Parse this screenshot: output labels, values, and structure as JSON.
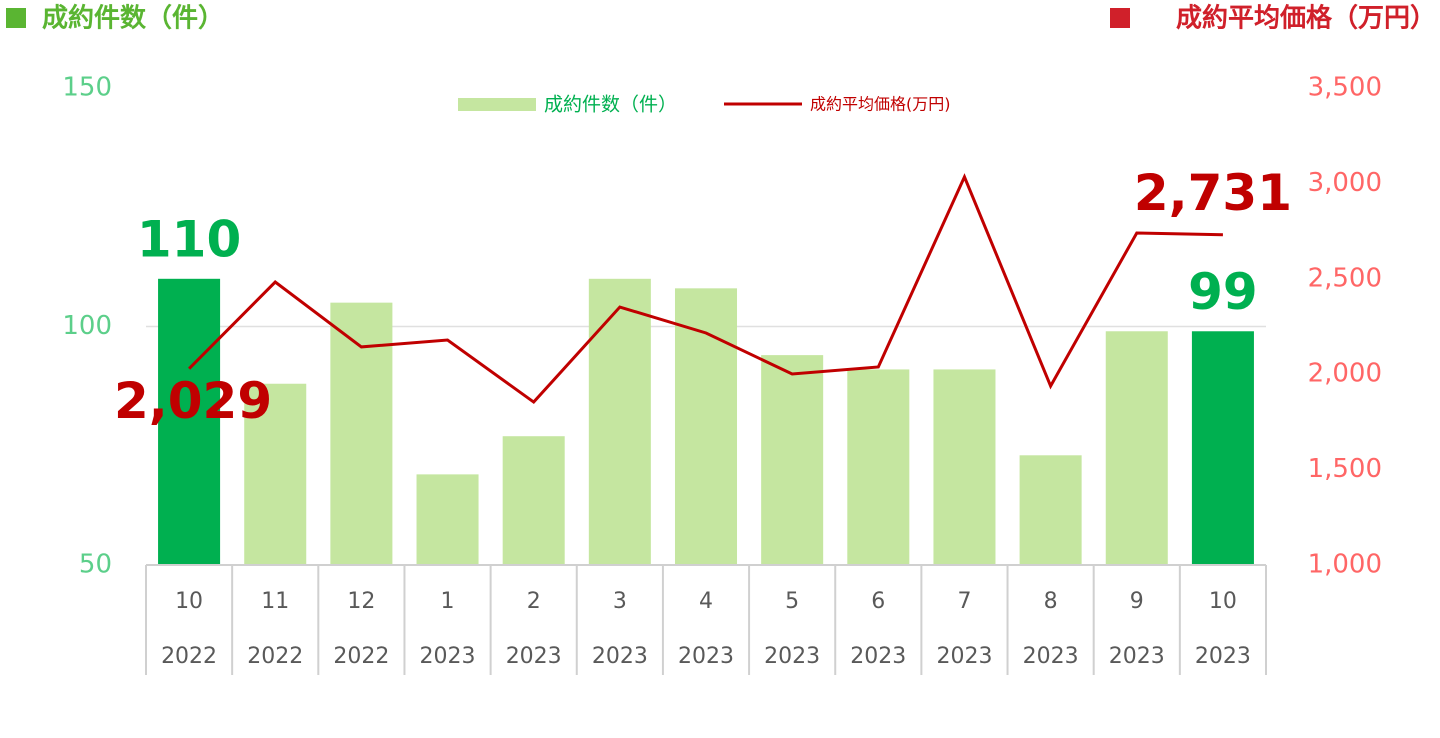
{
  "chart_data": {
    "type": "bar_line",
    "y_label": "成約件数（件）",
    "y2_label": "成約平均価格（万円）",
    "categories": [
      [
        "10",
        "2022"
      ],
      [
        "11",
        "2022"
      ],
      [
        "12",
        "2022"
      ],
      [
        "1",
        "2023"
      ],
      [
        "2",
        "2023"
      ],
      [
        "3",
        "2023"
      ],
      [
        "4",
        "2023"
      ],
      [
        "5",
        "2023"
      ],
      [
        "6",
        "2023"
      ],
      [
        "7",
        "2023"
      ],
      [
        "8",
        "2023"
      ],
      [
        "9",
        "2023"
      ],
      [
        "10",
        "2023"
      ]
    ],
    "series": [
      {
        "name": "成約件数（件）",
        "type": "bar",
        "axis": "y",
        "color": "#c5e6a0",
        "colors": [
          "#00b050",
          "#c5e6a0",
          "#c5e6a0",
          "#c5e6a0",
          "#c5e6a0",
          "#c5e6a0",
          "#c5e6a0",
          "#c5e6a0",
          "#c5e6a0",
          "#c5e6a0",
          "#c5e6a0",
          "#c5e6a0",
          "#00b050"
        ],
        "label_color": "#00b050",
        "values": [
          110,
          88,
          105,
          69,
          77,
          110,
          108,
          94,
          91,
          91,
          73,
          99,
          99
        ],
        "value_labels": [
          "110",
          null,
          null,
          null,
          null,
          null,
          null,
          null,
          null,
          null,
          null,
          null,
          "99"
        ]
      },
      {
        "name": "成約平均価格(万円)",
        "type": "line",
        "axis": "y2",
        "color": "#c00000",
        "label_color": "#c00000",
        "values": [
          2029,
          2483,
          2143,
          2179,
          1854,
          2352,
          2216,
          2001,
          2038,
          3034,
          1938,
          2740,
          2731
        ],
        "value_labels": [
          "2,029",
          null,
          null,
          null,
          null,
          null,
          null,
          null,
          null,
          null,
          null,
          null,
          "2,731"
        ]
      }
    ],
    "ylim": [
      50,
      150
    ],
    "yticks": [
      50,
      100,
      150
    ],
    "y2lim": [
      1000,
      3500
    ],
    "y2ticks": [
      {
        "value": 1000,
        "label": "1,000"
      },
      {
        "value": 1500,
        "label": "1,500"
      },
      {
        "value": 2000,
        "label": "2,000"
      },
      {
        "value": 2500,
        "label": "2,500"
      },
      {
        "value": 3000,
        "label": "3,000"
      },
      {
        "value": 3500,
        "label": "3,500"
      }
    ],
    "y_color": "#5ccf8a",
    "y2_color": "#ff6666",
    "grid": true
  }
}
